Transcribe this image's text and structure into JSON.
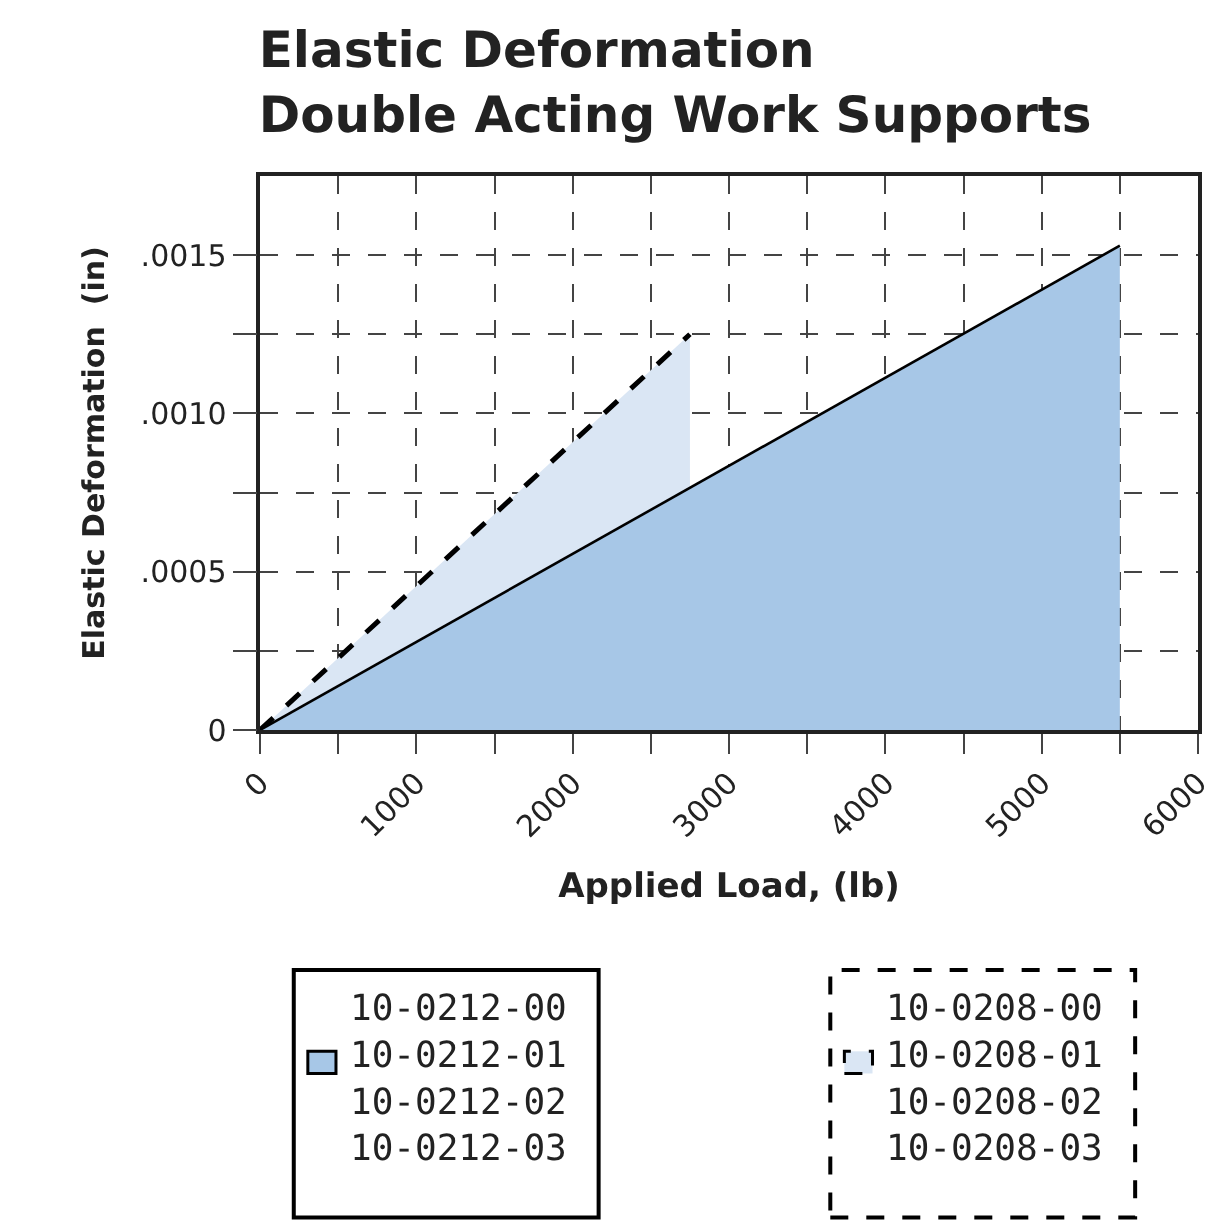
{
  "chart_data": {
    "type": "area",
    "title": "Elastic Deformation\nDouble Acting Work Supports",
    "xlabel": "Applied Load, (lb)",
    "ylabel": "Elastic Deformation  (in)",
    "series": [
      {
        "name": "10-0212-00\n10-0212-01\n10-0212-02\n10-0212-03",
        "color": "#a7c7e7",
        "x": [
          0,
          5500
        ],
        "values": [
          0,
          0.00153
        ],
        "line_style": "solid"
      },
      {
        "name": "10-0208-00\n10-0208-01\n10-0208-02\n10-0208-03",
        "color": "#dae6f4",
        "x": [
          0,
          2750
        ],
        "values": [
          0,
          0.00125
        ],
        "line_style": "dashed"
      }
    ],
    "xlim": [
      0,
      6000
    ],
    "ylim": [
      0,
      0.00175
    ],
    "xticks": [
      0,
      {
        "value": 500,
        "label": null
      },
      1000,
      {
        "value": 1500,
        "label": null
      },
      2000,
      {
        "value": 2500,
        "label": null
      },
      3000,
      {
        "value": 3500,
        "label": null
      },
      4000,
      {
        "value": 4500,
        "label": null
      },
      5000,
      {
        "value": 5500,
        "label": null
      },
      6000
    ],
    "yticks": [
      0,
      {
        "value": 0.00025,
        "label": null
      },
      {
        "value": 0.0005,
        "label": ".0005"
      },
      {
        "value": 0.00075,
        "label": null
      },
      {
        "value": 0.001,
        "label": ".0010"
      },
      {
        "value": 0.00125,
        "label": null
      },
      {
        "value": 0.0015,
        "label": ".0015"
      }
    ],
    "grid": true,
    "legend": "bottom",
    "marker": "none"
  }
}
